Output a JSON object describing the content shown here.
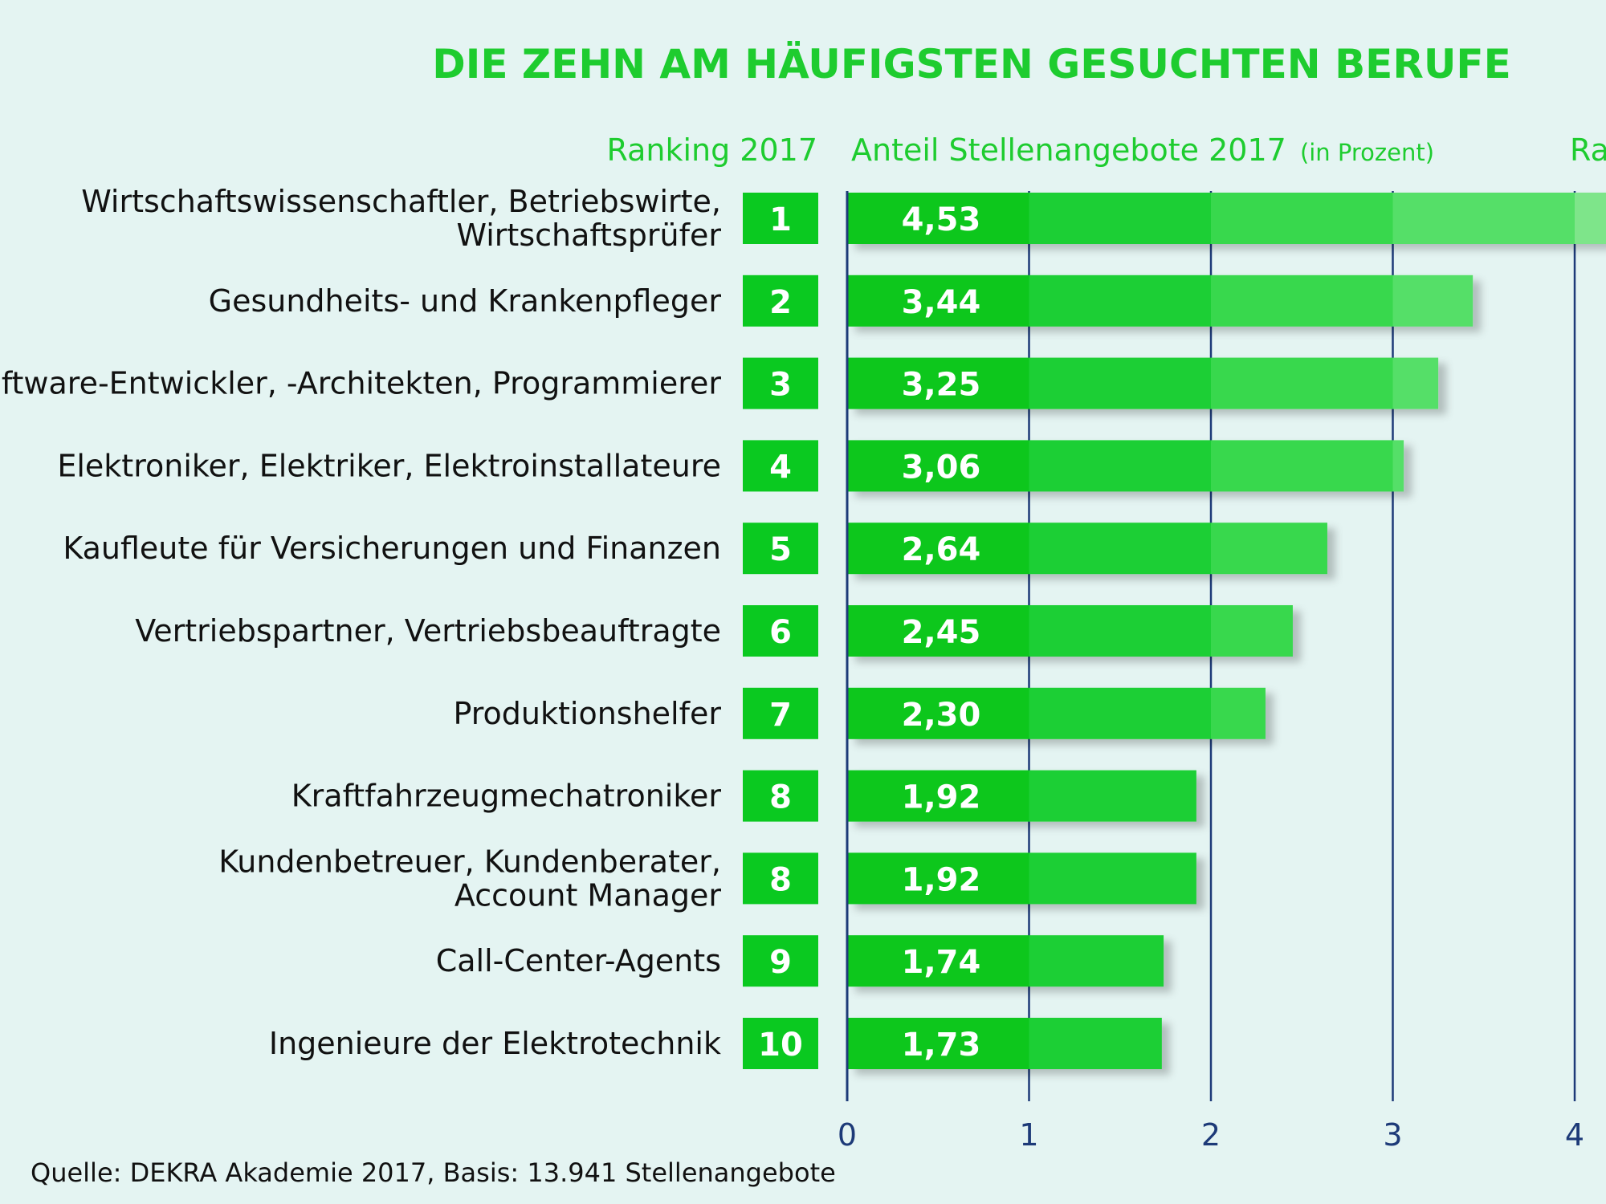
{
  "title": "DIE ZEHN AM HÄUFIGSTEN GESUCHTEN BERUFE",
  "headers": {
    "ranking": "Ranking 2017",
    "share": "Anteil Stellenangebote 2017",
    "share_unit": "(in Prozent)",
    "ranking_right_partial": "Ra"
  },
  "source": "Quelle: DEKRA Akademie 2017, Basis: 13.941 Stellenangebote",
  "colors": {
    "background": "#e4f4f2",
    "accent": "#1ecc2f",
    "bar_dark": "#08c71f",
    "bar_light": "#7ee58a",
    "axis": "#1d3a78",
    "rank_box": "#0ac920"
  },
  "chart_data": {
    "type": "bar",
    "orientation": "horizontal",
    "title": "DIE ZEHN AM HÄUFIGSTEN GESUCHTEN BERUFE",
    "xlabel": "Anteil Stellenangebote 2017 (in Prozent)",
    "xlim": [
      0,
      4.5
    ],
    "xticks": [
      0,
      1,
      2,
      3,
      4
    ],
    "grid": true,
    "categories": [
      [
        "Wirtschaftswissenschaftler, Betriebswirte,",
        "Wirtschaftsprüfer"
      ],
      [
        "Gesundheits- und Krankenpfleger"
      ],
      [
        "Software-Entwickler, -Architekten, Programmierer"
      ],
      [
        "Elektroniker, Elektriker, Elektroinstallateure"
      ],
      [
        "Kaufleute für Versicherungen und Finanzen"
      ],
      [
        "Vertriebspartner, Vertriebsbeauftragte"
      ],
      [
        "Produktionshelfer"
      ],
      [
        "Kraftfahrzeugmechatroniker"
      ],
      [
        "Kundenbetreuer, Kundenberater,",
        "Account Manager"
      ],
      [
        "Call-Center-Agents"
      ],
      [
        "Ingenieure der Elektrotechnik"
      ]
    ],
    "ranks": [
      "1",
      "2",
      "3",
      "4",
      "5",
      "6",
      "7",
      "8",
      "8",
      "9",
      "10"
    ],
    "values": [
      4.53,
      3.44,
      3.25,
      3.06,
      2.64,
      2.45,
      2.3,
      1.92,
      1.92,
      1.74,
      1.73
    ],
    "value_labels": [
      "4,53",
      "3,44",
      "3,25",
      "3,06",
      "2,64",
      "2,45",
      "2,30",
      "1,92",
      "1,92",
      "1,74",
      "1,73"
    ]
  }
}
